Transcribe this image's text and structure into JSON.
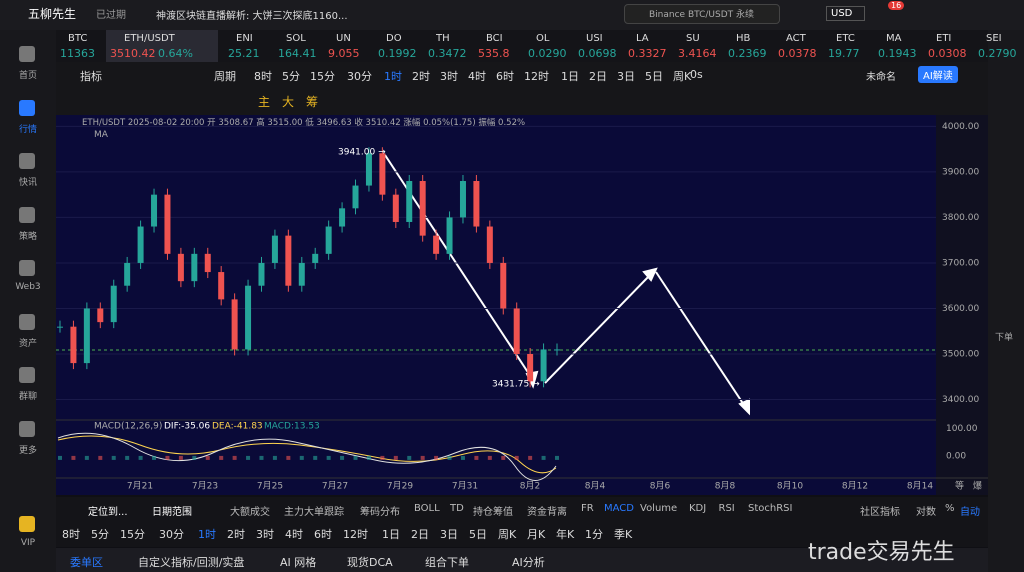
{
  "header": {
    "logo": "五柳先生",
    "status": "已过期",
    "news": "神渡区块链直播解析:  大饼三次探底1160...",
    "search": "Binance BTC/USDT 永续",
    "currency": "USD",
    "badge": "16"
  },
  "tickers": [
    {
      "symbol": "BTC",
      "price": "11363"
    },
    {
      "symbol": "ETH/USDT",
      "price": "3510.42",
      "change": "0.64%"
    },
    {
      "symbol": "ENI",
      "price": "25.21"
    },
    {
      "symbol": "SOL",
      "price": "164.41"
    },
    {
      "symbol": "UN",
      "price": "9.055"
    },
    {
      "symbol": "DO",
      "price": "0.1992"
    },
    {
      "symbol": "TH",
      "price": "0.3472"
    },
    {
      "symbol": "BCI",
      "price": "535.8"
    },
    {
      "symbol": "OL",
      "price": "0.0290"
    },
    {
      "symbol": "USI",
      "price": "0.0698"
    },
    {
      "symbol": "LA",
      "price": "0.3327"
    },
    {
      "symbol": "SU",
      "price": "3.4164"
    },
    {
      "symbol": "HB",
      "price": "0.2369"
    },
    {
      "symbol": "ACT",
      "price": "0.0378"
    },
    {
      "symbol": "ETC",
      "price": "19.77"
    },
    {
      "symbol": "MA",
      "price": "0.1943"
    },
    {
      "symbol": "ETI",
      "price": "0.0308"
    },
    {
      "symbol": "SEI",
      "price": "0.2790"
    }
  ],
  "nav": [
    "首页",
    "行情",
    "快讯",
    "策略",
    "Web3",
    "资产",
    "群聊",
    "更多",
    "VIP"
  ],
  "toolbar": {
    "indicator": "指标",
    "period": "周期",
    "timeframes": [
      "8时",
      "5分",
      "15分",
      "30分",
      "1时",
      "2时",
      "3时",
      "4时",
      "6时",
      "12时",
      "1日",
      "2日",
      "3日",
      "5日",
      "周K"
    ],
    "delay": "0s",
    "layout_name": "未命名",
    "ai": "AI解读",
    "draw_tools": [
      "主",
      "大",
      "筹"
    ]
  },
  "chart": {
    "info": "ETH/USDT  2025-08-02 20:00  开 3508.67 高 3515.00 低 3496.63 收 3510.42 涨幅 0.05%(1.75) 振幅 0.52%",
    "ma": "MA",
    "high_label": "3941.00 →",
    "low_label": "3431.75 →",
    "closes": [
      3560,
      3480,
      3600,
      3570,
      3650,
      3700,
      3780,
      3850,
      3720,
      3660,
      3720,
      3680,
      3620,
      3510,
      3650,
      3700,
      3760,
      3650,
      3700,
      3720,
      3780,
      3820,
      3870,
      3941,
      3850,
      3790,
      3880,
      3760,
      3720,
      3800,
      3880,
      3780,
      3700,
      3600,
      3500,
      3440,
      3510,
      3510
    ],
    "ylim": [
      3355,
      4025
    ],
    "yticks": [
      {
        "value": 4000,
        "label": "4000.00"
      },
      {
        "value": 3900,
        "label": "3900.00"
      },
      {
        "value": 3800,
        "label": "3800.00"
      },
      {
        "value": 3700,
        "label": "3700.00"
      },
      {
        "value": 3600,
        "label": "3600.00"
      },
      {
        "value": 3500,
        "label": "3500.00"
      },
      {
        "value": 3400,
        "label": "3400.00"
      }
    ],
    "dates": [
      "7月21",
      "7月23",
      "7月25",
      "7月27",
      "7月29",
      "7月31",
      "8月2",
      "8月4",
      "8月6",
      "8月8",
      "8月10",
      "8月12",
      "8月14"
    ],
    "axis_extra": [
      "等",
      "爆"
    ],
    "macd": {
      "label": "MACD(12,26,9)",
      "dif": "DIF:-35.06",
      "dea": "DEA:-41.83",
      "macd": "MACD:13.53",
      "ylim": [
        -80,
        130
      ],
      "yticks": [
        {
          "value": 100,
          "label": "100.00"
        },
        {
          "value": 0,
          "label": "0.00"
        }
      ]
    }
  },
  "side": {
    "order": "下单"
  },
  "indicator_bar": {
    "locate": "定位到...",
    "range": "日期范围",
    "items": [
      "大额成交",
      "主力大单跟踪",
      "筹码分布",
      "BOLL",
      "TD",
      "持仓筹值",
      "资金背离",
      "FR",
      "MACD",
      "Volume",
      "KDJ",
      "RSI",
      "StochRSI"
    ],
    "community": "社区指标",
    "log": "对数",
    "pct": "%",
    "auto": "自动"
  },
  "timeframe_bar": [
    "8时",
    "5分",
    "15分",
    "30分",
    "1时",
    "2时",
    "3时",
    "4时",
    "6时",
    "12时",
    "1日",
    "2日",
    "3日",
    "5日",
    "周K",
    "月K",
    "年K",
    "1分",
    "季K"
  ],
  "bottom_tabs": [
    "委单区",
    "自定义指标/回测/实盘",
    "AI 网格",
    "现货DCA",
    "组合下单",
    "AI分析"
  ],
  "watermark": "trade交易先生"
}
